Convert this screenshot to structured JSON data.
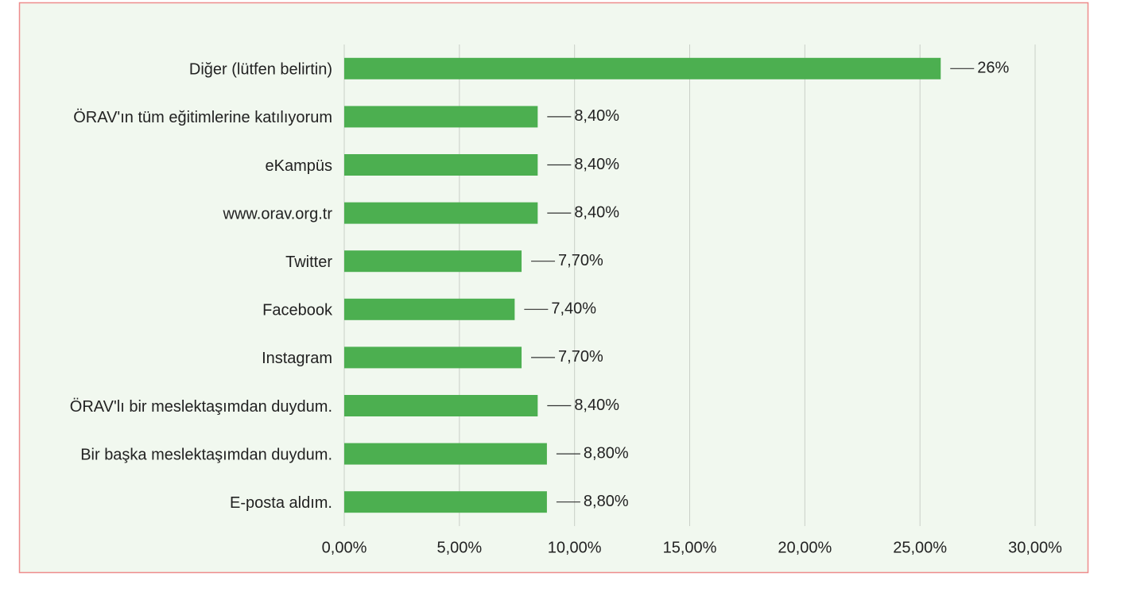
{
  "chart_data": {
    "type": "barh",
    "categories": [
      "Diğer (lütfen belirtin)",
      "ÖRAV'ın tüm eğitimlerine katılıyorum",
      "eKampüs",
      "www.orav.org.tr",
      "Twitter",
      "Facebook",
      "Instagram",
      "ÖRAV'lı bir meslektaşımdan duydum.",
      "Bir başka meslektaşımdan duydum.",
      "E-posta aldım."
    ],
    "values": [
      25.9,
      8.4,
      8.4,
      8.4,
      7.7,
      7.4,
      7.7,
      8.4,
      8.8,
      8.8
    ],
    "value_labels": [
      "26%",
      "8,40%",
      "8,40%",
      "8,40%",
      "7,70%",
      "7,40%",
      "7,70%",
      "8,40%",
      "8,80%",
      "8,80%"
    ],
    "color": "#4caf50",
    "xlim": [
      0,
      30
    ],
    "xticks": [
      {
        "value": 0,
        "label": "0,00%"
      },
      {
        "value": 5,
        "label": "5,00%"
      },
      {
        "value": 10,
        "label": "10,00%"
      },
      {
        "value": 15,
        "label": "15,00%"
      },
      {
        "value": 20,
        "label": "20,00%"
      },
      {
        "value": 25,
        "label": "25,00%"
      },
      {
        "value": 30,
        "label": "30,00%"
      }
    ],
    "grid": true
  }
}
